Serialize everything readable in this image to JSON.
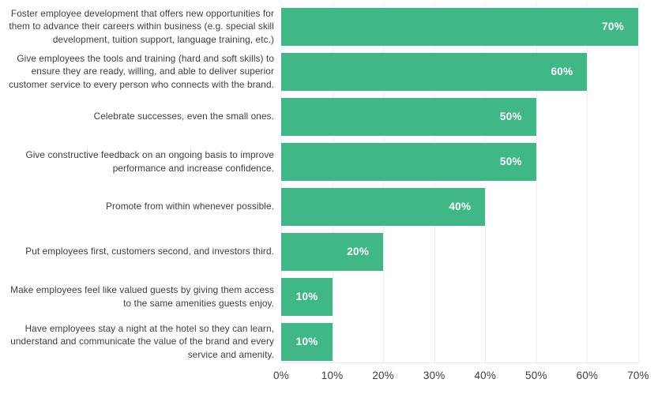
{
  "chart_data": {
    "type": "bar",
    "orientation": "horizontal",
    "title": "",
    "xlabel": "",
    "ylabel": "",
    "xlim": [
      0,
      70
    ],
    "grid": "vertical",
    "legend": "none",
    "bar_color": "#3fb787",
    "value_text_color": "#ffffff",
    "axis_text_color": "#3d3d3d",
    "gridline_color": "#ededed",
    "categories": [
      "Foster employee development that offers new opportunities for them to advance their careers within business (e.g. special skill development, tuition support, language training, etc.)",
      "Give employees the tools and training (hard and soft skills) to ensure they are ready, willing, and able to deliver superior customer service to every person who connects with the brand.",
      "Celebrate successes, even the small ones.",
      "Give constructive feedback on an ongoing basis to improve performance and increase confidence.",
      "Promote from within whenever possible.",
      "Put employees first, customers second, and investors third.",
      "Make employees feel like valued guests by giving them access to the same amenities guests enjoy.",
      "Have employees stay a night at the hotel so they can learn, understand and communicate the value of the brand and every service and amenity."
    ],
    "values": [
      70,
      60,
      50,
      50,
      40,
      20,
      10,
      10
    ],
    "value_labels": [
      "70%",
      "60%",
      "50%",
      "50%",
      "40%",
      "20%",
      "10%",
      "10%"
    ],
    "tick_labels": [
      "0%",
      "10%",
      "20%",
      "30%",
      "40%",
      "50%",
      "60%",
      "70%"
    ]
  }
}
